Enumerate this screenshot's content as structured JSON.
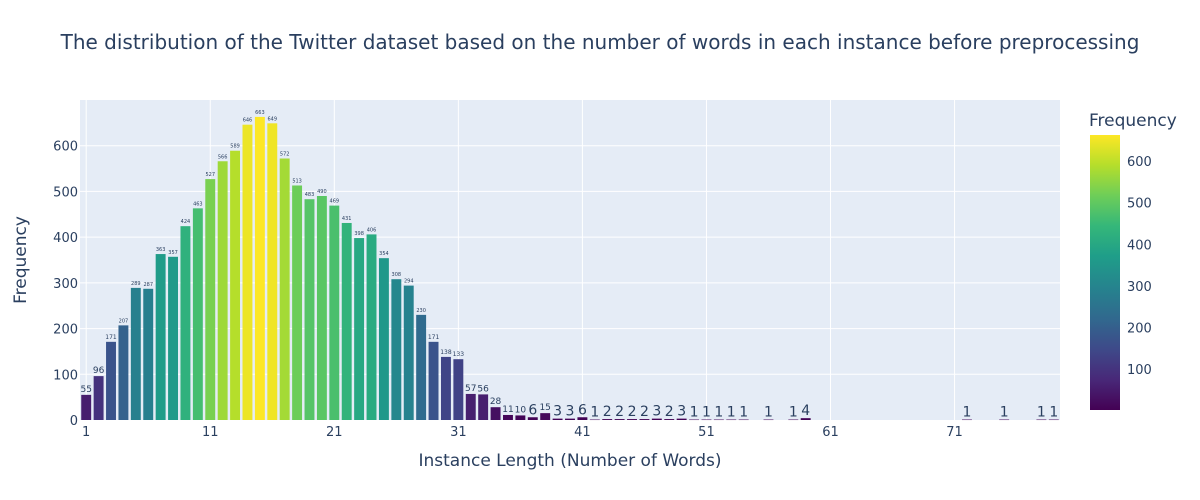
{
  "chart_data": {
    "type": "bar",
    "title": "The distribution of the Twitter dataset based on the number of words in each instance before preprocessing",
    "xlabel": "Instance Length (Number of Words)",
    "ylabel": "Frequency",
    "colorbar_title": "Frequency",
    "colorscale": "viridis",
    "color_range": [
      1,
      663
    ],
    "x_range": [
      0.5,
      79.5
    ],
    "y_range": [
      0,
      700
    ],
    "x_ticks": [
      1,
      11,
      21,
      31,
      41,
      51,
      61,
      71
    ],
    "y_ticks": [
      0,
      100,
      200,
      300,
      400,
      500,
      600
    ],
    "colorbar_ticks": [
      100,
      200,
      300,
      400,
      500,
      600
    ],
    "grid": true,
    "x": [
      1,
      2,
      3,
      4,
      5,
      6,
      7,
      8,
      9,
      10,
      11,
      12,
      13,
      14,
      15,
      16,
      17,
      18,
      19,
      20,
      21,
      22,
      23,
      24,
      25,
      26,
      27,
      28,
      29,
      30,
      31,
      32,
      33,
      34,
      35,
      36,
      37,
      38,
      39,
      40,
      41,
      42,
      43,
      44,
      45,
      46,
      47,
      48,
      49,
      50,
      51,
      52,
      53,
      54,
      56,
      58,
      59,
      72,
      75,
      78,
      79
    ],
    "values": [
      55,
      96,
      171,
      207,
      289,
      287,
      363,
      357,
      424,
      463,
      527,
      566,
      589,
      646,
      663,
      649,
      572,
      513,
      483,
      490,
      469,
      431,
      398,
      406,
      354,
      308,
      294,
      230,
      171,
      138,
      133,
      57,
      56,
      28,
      11,
      10,
      6,
      15,
      3,
      3,
      6,
      1,
      2,
      2,
      2,
      2,
      3,
      2,
      3,
      1,
      1,
      1,
      1,
      1,
      1,
      1,
      4,
      1,
      1,
      1,
      1
    ]
  }
}
